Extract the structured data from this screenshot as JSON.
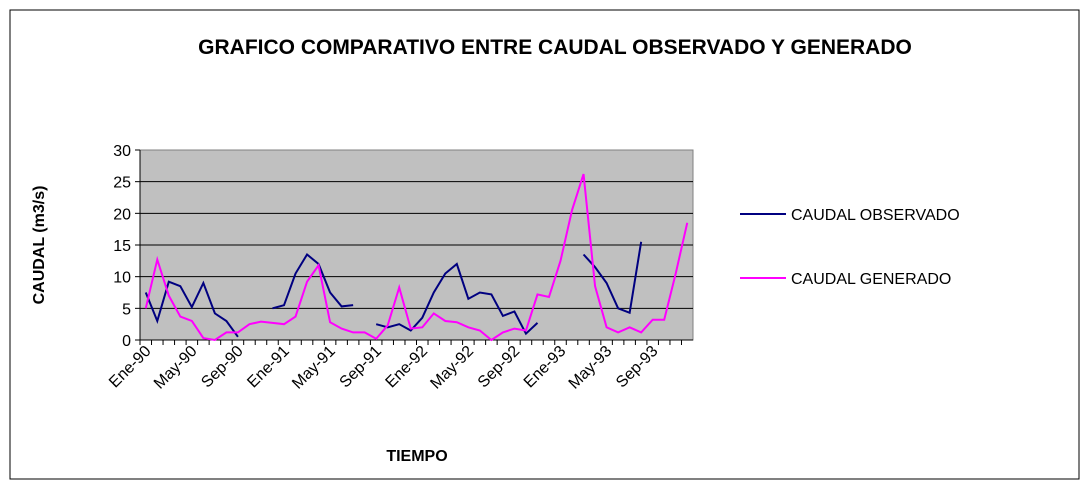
{
  "chart_data": {
    "type": "line",
    "title": "GRAFICO COMPARATIVO ENTRE CAUDAL OBSERVADO Y GENERADO",
    "x_label": "TIEMPO",
    "y_label": "CAUDAL (m3/s)",
    "categories": [
      "Ene-90",
      null,
      null,
      null,
      "May-90",
      null,
      null,
      null,
      "Sep-90",
      null,
      null,
      null,
      "Ene-91",
      null,
      null,
      null,
      "May-91",
      null,
      null,
      null,
      "Sep-91",
      null,
      null,
      null,
      "Ene-92",
      null,
      null,
      null,
      "May-92",
      null,
      null,
      null,
      "Sep-92",
      null,
      null,
      null,
      "Ene-93",
      null,
      null,
      null,
      "May-93",
      null,
      null,
      null,
      "Sep-93",
      null,
      null,
      null
    ],
    "series": [
      {
        "name": "CAUDAL OBSERVADO",
        "color": "#000080",
        "values": [
          7.5,
          3,
          9.2,
          8.5,
          5.2,
          9,
          4.2,
          3,
          0.5,
          null,
          null,
          5,
          5.5,
          10.5,
          13.5,
          12,
          7.5,
          5.3,
          5.5,
          null,
          2.5,
          2,
          2.5,
          1.5,
          3.5,
          7.5,
          10.5,
          12,
          6.5,
          7.5,
          7.2,
          3.8,
          4.5,
          1,
          2.7,
          null,
          null,
          null,
          13.5,
          11.5,
          9,
          5,
          4.3,
          15.5,
          null,
          null,
          null,
          null
        ]
      },
      {
        "name": "CAUDAL GENERADO",
        "color": "#ff00ff",
        "values": [
          5,
          12.7,
          7,
          3.7,
          3,
          0.3,
          0,
          1.2,
          1.2,
          2.5,
          2.9,
          2.7,
          2.5,
          3.7,
          9.2,
          11.8,
          2.8,
          1.8,
          1.2,
          1.2,
          0.2,
          2.3,
          8.3,
          1.8,
          2,
          4.2,
          3,
          2.8,
          2,
          1.5,
          0,
          1.2,
          1.8,
          1.5,
          7.2,
          6.8,
          12.5,
          20.5,
          26.2,
          8.5,
          2,
          1.2,
          2,
          1.2,
          3.2,
          3.2,
          10.5,
          18.5
        ]
      }
    ],
    "ylim": [
      0,
      30
    ],
    "yticks": [
      0,
      5,
      10,
      15,
      20,
      25,
      30
    ],
    "grid": true,
    "legend": "right"
  }
}
